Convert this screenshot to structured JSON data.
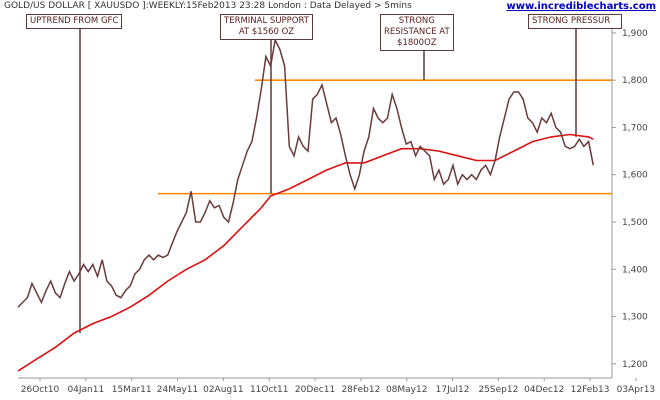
{
  "header": {
    "title": "GOLD/US DOLLAR [ XAUUSDO ]:WEEKLY:15Feb2013 23:28 London : Data Delayed > 5mins",
    "site": "www.incrediblecharts.com"
  },
  "annotations": [
    {
      "id": "gfc",
      "lines": [
        "UPTREND FROM GFC"
      ]
    },
    {
      "id": "support",
      "lines": [
        "TERMINAL SUPPORT",
        "AT $1560 OZ"
      ]
    },
    {
      "id": "resistance",
      "lines": [
        "STRONG",
        "RESISTANCE AT",
        "$1800OZ"
      ]
    },
    {
      "id": "pressure",
      "lines": [
        "STRONG PRESSUR"
      ]
    }
  ],
  "colors": {
    "price": "#6b3a3a",
    "ma": "#dd1111",
    "levels": "#ff8800",
    "axis": "#999999",
    "ann_line": "#5a3a3a"
  },
  "chart_data": {
    "type": "line",
    "x_ticks": [
      "26Oct10",
      "04Jan11",
      "15Mar11",
      "24May11",
      "02Aug11",
      "11Oct11",
      "20Dec11",
      "28Feb12",
      "08May12",
      "17Jul12",
      "25Sep12",
      "04Dec12",
      "12Feb13",
      "03Apr13"
    ],
    "y_ticks": [
      1200,
      1300,
      1400,
      1500,
      1600,
      1700,
      1800,
      1900
    ],
    "y_tick_labels": [
      "1,200",
      "1,300",
      "1,400",
      "1,500",
      "1,600",
      "1,700",
      "1,800",
      "1,900"
    ],
    "ylim": [
      1170,
      1940
    ],
    "week_range": [
      0,
      127
    ],
    "horizontal_lines": [
      1800,
      1560
    ],
    "series": [
      {
        "values": [
          [
            0,
            1320
          ],
          [
            2,
            1340
          ],
          [
            3,
            1370
          ],
          [
            4,
            1350
          ],
          [
            5,
            1330
          ],
          [
            6,
            1355
          ],
          [
            7,
            1375
          ],
          [
            8,
            1350
          ],
          [
            9,
            1340
          ],
          [
            10,
            1370
          ],
          [
            11,
            1395
          ],
          [
            12,
            1375
          ],
          [
            13,
            1390
          ],
          [
            14,
            1410
          ],
          [
            15,
            1395
          ],
          [
            16,
            1410
          ],
          [
            17,
            1385
          ],
          [
            18,
            1420
          ],
          [
            19,
            1375
          ],
          [
            20,
            1365
          ],
          [
            21,
            1345
          ],
          [
            22,
            1340
          ],
          [
            23,
            1355
          ],
          [
            24,
            1365
          ],
          [
            25,
            1390
          ],
          [
            26,
            1400
          ],
          [
            27,
            1420
          ],
          [
            28,
            1430
          ],
          [
            29,
            1420
          ],
          [
            30,
            1430
          ],
          [
            31,
            1425
          ],
          [
            32,
            1430
          ],
          [
            33,
            1455
          ],
          [
            34,
            1480
          ],
          [
            35,
            1500
          ],
          [
            36,
            1520
          ],
          [
            37,
            1565
          ],
          [
            38,
            1500
          ],
          [
            39,
            1500
          ],
          [
            40,
            1520
          ],
          [
            41,
            1545
          ],
          [
            42,
            1530
          ],
          [
            43,
            1535
          ],
          [
            44,
            1510
          ],
          [
            45,
            1500
          ],
          [
            46,
            1540
          ],
          [
            47,
            1590
          ],
          [
            48,
            1620
          ],
          [
            49,
            1650
          ],
          [
            50,
            1670
          ],
          [
            51,
            1720
          ],
          [
            52,
            1780
          ],
          [
            53,
            1850
          ],
          [
            54,
            1830
          ],
          [
            55,
            1885
          ],
          [
            56,
            1865
          ],
          [
            57,
            1830
          ],
          [
            58,
            1660
          ],
          [
            59,
            1640
          ],
          [
            60,
            1680
          ],
          [
            61,
            1660
          ],
          [
            62,
            1650
          ],
          [
            63,
            1760
          ],
          [
            64,
            1770
          ],
          [
            65,
            1790
          ],
          [
            66,
            1750
          ],
          [
            67,
            1710
          ],
          [
            68,
            1720
          ],
          [
            69,
            1685
          ],
          [
            70,
            1640
          ],
          [
            71,
            1600
          ],
          [
            72,
            1570
          ],
          [
            73,
            1600
          ],
          [
            74,
            1650
          ],
          [
            75,
            1680
          ],
          [
            76,
            1740
          ],
          [
            77,
            1720
          ],
          [
            78,
            1710
          ],
          [
            79,
            1720
          ],
          [
            80,
            1770
          ],
          [
            81,
            1740
          ],
          [
            82,
            1700
          ],
          [
            83,
            1665
          ],
          [
            84,
            1670
          ],
          [
            85,
            1640
          ],
          [
            86,
            1660
          ],
          [
            87,
            1650
          ],
          [
            88,
            1640
          ],
          [
            89,
            1590
          ],
          [
            90,
            1610
          ],
          [
            91,
            1580
          ],
          [
            92,
            1590
          ],
          [
            93,
            1620
          ],
          [
            94,
            1580
          ],
          [
            95,
            1600
          ],
          [
            96,
            1590
          ],
          [
            97,
            1600
          ],
          [
            98,
            1590
          ],
          [
            99,
            1610
          ],
          [
            100,
            1620
          ],
          [
            101,
            1600
          ],
          [
            102,
            1630
          ],
          [
            103,
            1680
          ],
          [
            104,
            1720
          ],
          [
            105,
            1760
          ],
          [
            106,
            1775
          ],
          [
            107,
            1775
          ],
          [
            108,
            1760
          ],
          [
            109,
            1720
          ],
          [
            110,
            1710
          ],
          [
            111,
            1690
          ],
          [
            112,
            1720
          ],
          [
            113,
            1710
          ],
          [
            114,
            1730
          ],
          [
            115,
            1700
          ],
          [
            116,
            1690
          ],
          [
            117,
            1660
          ],
          [
            118,
            1655
          ],
          [
            119,
            1660
          ],
          [
            120,
            1675
          ],
          [
            121,
            1660
          ],
          [
            122,
            1670
          ],
          [
            123,
            1620
          ]
        ]
      },
      {
        "values": [
          [
            0,
            1185
          ],
          [
            4,
            1210
          ],
          [
            8,
            1235
          ],
          [
            12,
            1265
          ],
          [
            16,
            1285
          ],
          [
            20,
            1300
          ],
          [
            24,
            1320
          ],
          [
            28,
            1345
          ],
          [
            32,
            1375
          ],
          [
            36,
            1400
          ],
          [
            40,
            1420
          ],
          [
            44,
            1450
          ],
          [
            48,
            1490
          ],
          [
            52,
            1530
          ],
          [
            54,
            1555
          ],
          [
            58,
            1570
          ],
          [
            62,
            1590
          ],
          [
            66,
            1610
          ],
          [
            70,
            1625
          ],
          [
            74,
            1625
          ],
          [
            78,
            1640
          ],
          [
            82,
            1655
          ],
          [
            86,
            1655
          ],
          [
            90,
            1650
          ],
          [
            94,
            1640
          ],
          [
            98,
            1630
          ],
          [
            102,
            1630
          ],
          [
            106,
            1650
          ],
          [
            110,
            1670
          ],
          [
            114,
            1680
          ],
          [
            118,
            1685
          ],
          [
            122,
            1680
          ],
          [
            123,
            1675
          ]
        ]
      }
    ]
  }
}
